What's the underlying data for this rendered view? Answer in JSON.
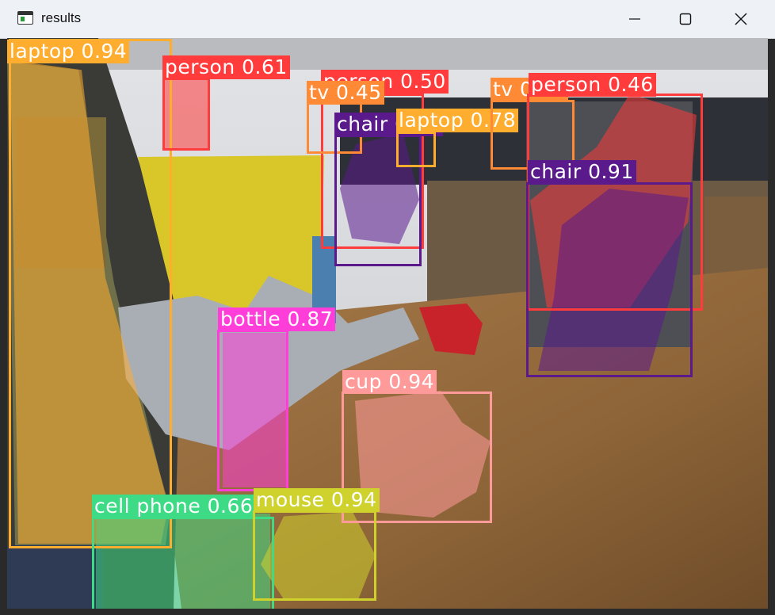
{
  "window": {
    "title": "results",
    "icons": {
      "app": "app-window-icon",
      "minimize": "minimize-icon",
      "maximize": "maximize-icon",
      "close": "close-icon"
    }
  },
  "detections": [
    {
      "label": "laptop 0.94",
      "color": "#ffad2f"
    },
    {
      "label": "person 0.61",
      "color": "#ff3b3b"
    },
    {
      "label": "person 0.50",
      "color": "#ff3b3b"
    },
    {
      "label": "tv 0.45",
      "color": "#ff8a36"
    },
    {
      "label": "chair 0.85",
      "color": "#5a1a8c"
    },
    {
      "label": "laptop 0.78",
      "color": "#ffad2f"
    },
    {
      "label": "tv 0.66",
      "color": "#ff8a36"
    },
    {
      "label": "person 0.46",
      "color": "#ff3b3b"
    },
    {
      "label": "chair 0.91",
      "color": "#5a1a8c"
    },
    {
      "label": "bottle 0.87",
      "color": "#ff3dd9"
    },
    {
      "label": "cup 0.94",
      "color": "#ff9a9a"
    },
    {
      "label": "cell phone 0.66",
      "color": "#3ddb85"
    },
    {
      "label": "mouse 0.94",
      "color": "#cfd22d"
    }
  ]
}
